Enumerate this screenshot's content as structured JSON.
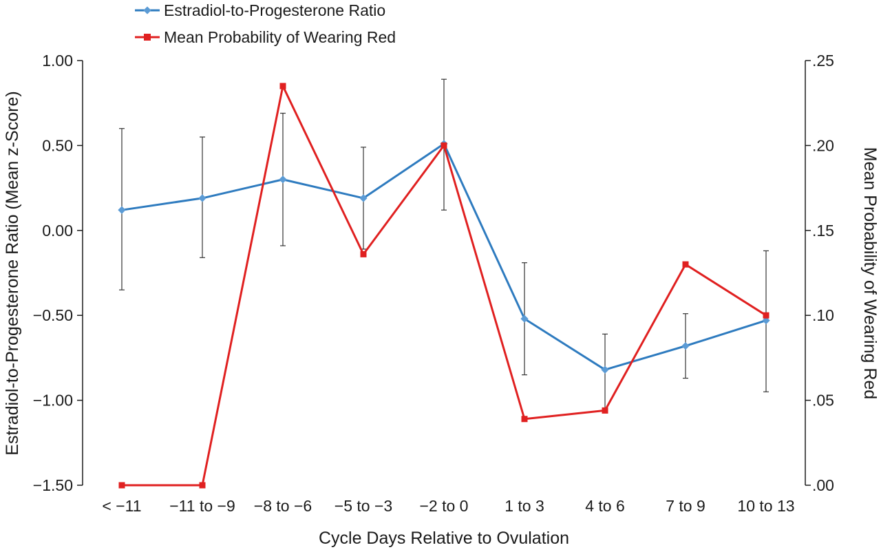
{
  "chart_data": {
    "type": "line",
    "categories": [
      "< −11",
      "−11 to −9",
      "−8 to −6",
      "−5 to −3",
      "−2 to 0",
      "1 to 3",
      "4 to 6",
      "7 to 9",
      "10 to 13"
    ],
    "xlabel": "Cycle Days Relative to Ovulation",
    "ylabel_left": "Estradiol-to-Progesterone Ratio (Mean z-Score)",
    "ylabel_right": "Mean Probability of Wearing Red",
    "ylim_left": [
      -1.5,
      1.0
    ],
    "ylim_right": [
      0.0,
      0.25
    ],
    "yticks_left": [
      {
        "value": 1.0,
        "label": "1.00"
      },
      {
        "value": 0.5,
        "label": "0.50"
      },
      {
        "value": 0.0,
        "label": "0.00"
      },
      {
        "value": -0.5,
        "label": "−0.50"
      },
      {
        "value": -1.0,
        "label": "−1.00"
      },
      {
        "value": -1.5,
        "label": "−1.50"
      }
    ],
    "yticks_right": [
      {
        "value": 0.25,
        "label": ".25"
      },
      {
        "value": 0.2,
        "label": ".20"
      },
      {
        "value": 0.15,
        "label": ".15"
      },
      {
        "value": 0.1,
        "label": ".10"
      },
      {
        "value": 0.05,
        "label": ".05"
      },
      {
        "value": 0.0,
        "label": ".00"
      }
    ],
    "legend_position": "top-left",
    "grid": false,
    "series": [
      {
        "name": "Estradiol-to-Progesterone Ratio",
        "axis": "left",
        "color": "#2e7bbf",
        "marker": "diamond",
        "values": [
          0.12,
          0.19,
          0.3,
          0.19,
          0.51,
          -0.52,
          -0.82,
          -0.68,
          -0.53
        ],
        "error_low": [
          -0.35,
          -0.16,
          -0.09,
          -0.11,
          0.12,
          -0.85,
          -1.05,
          -0.87,
          -0.95
        ],
        "error_high": [
          0.6,
          0.55,
          0.69,
          0.49,
          0.89,
          -0.19,
          -0.61,
          -0.49,
          -0.12
        ]
      },
      {
        "name": "Mean Probability of Wearing Red",
        "axis": "right",
        "color": "#e02020",
        "marker": "square",
        "values": [
          0.0,
          0.0,
          0.235,
          0.136,
          0.2,
          0.039,
          0.044,
          0.13,
          0.1
        ]
      }
    ]
  }
}
